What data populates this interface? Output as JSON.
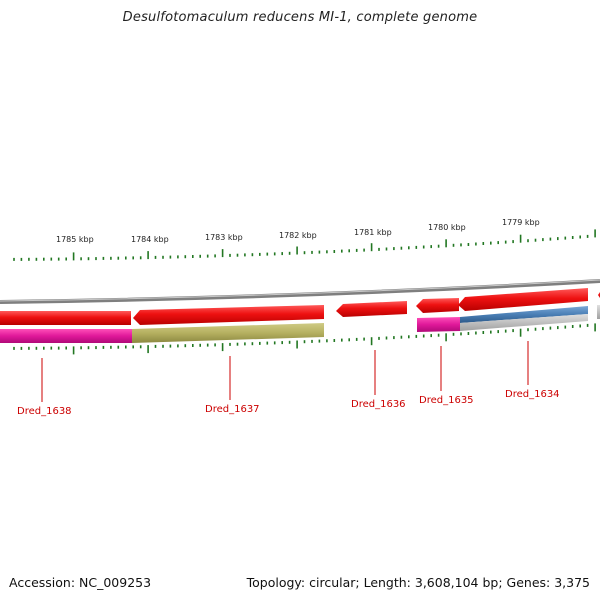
{
  "title": "Desulfotomaculum reducens MI-1, complete genome",
  "footer": {
    "accession": "Accession: NC_009253",
    "topology": "Topology: circular; Length: 3,608,104 bp; Genes: 3,375"
  },
  "scale_labels": [
    "1785 kbp",
    "1784 kbp",
    "1783 kbp",
    "1782 kbp",
    "1781 kbp",
    "1780 kbp",
    "1779 kbp"
  ],
  "gene_labels": [
    "Dred_1638",
    "Dred_1637",
    "Dred_1636",
    "Dred_1635",
    "Dred_1634"
  ],
  "colors": {
    "backbone": "#8a8a8a",
    "gene_forward": "#ee1111",
    "label_red": "#cc0000",
    "tick_green": "#227722",
    "magenta": "#e0189a",
    "olive": "#b5b060",
    "steel_blue": "#4a7fb5",
    "light_gray": "#b8b8b8"
  }
}
